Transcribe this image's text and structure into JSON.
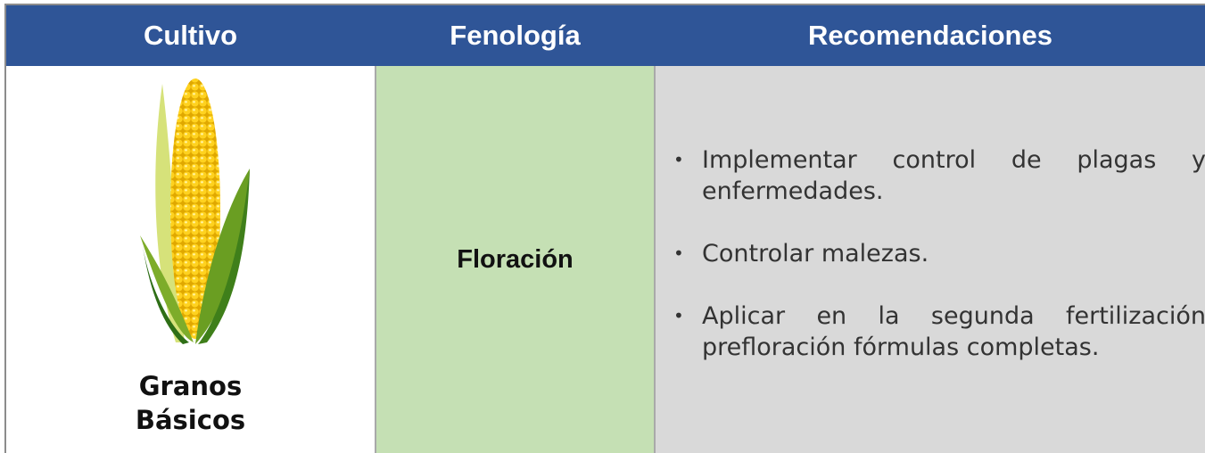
{
  "table": {
    "columns": [
      "Cultivo",
      "Fenología",
      "Recomendaciones"
    ],
    "rows": [
      [
        "Granos Básicos",
        "Floración",
        [
          "Implementar control de plagas y enfermedades.",
          "Controlar malezas.",
          "Aplicar en la segunda fertilización prefloración fórmulas completas."
        ]
      ]
    ]
  }
}
